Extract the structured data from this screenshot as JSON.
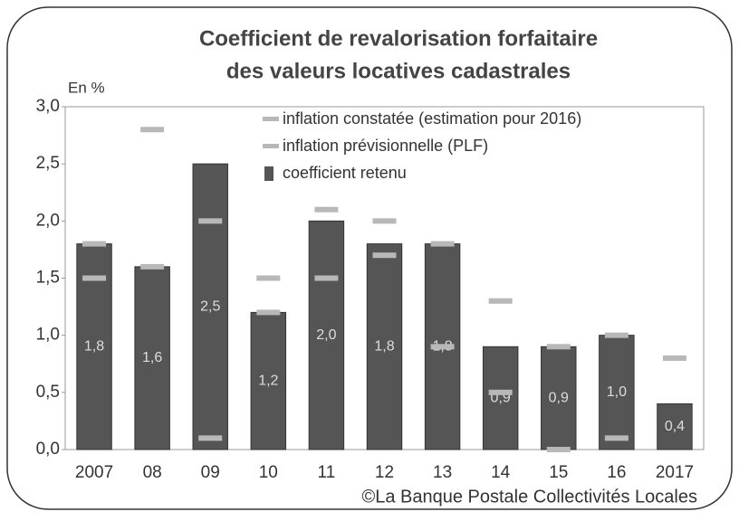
{
  "chart_data": {
    "type": "bar",
    "title": [
      "Coefficient de revalorisation forfaitaire",
      "des valeurs locatives cadastrales"
    ],
    "y_axis_label": "En %",
    "source": "©La Banque Postale Collectivités Locales",
    "categories": [
      "2007",
      "08",
      "09",
      "10",
      "11",
      "12",
      "13",
      "14",
      "15",
      "16",
      "2017"
    ],
    "series": [
      {
        "name": "inflation  constatée (estimation pour 2016)",
        "color": "#b8b8b8",
        "kind": "marker",
        "values": [
          1.5,
          2.8,
          0.1,
          1.5,
          2.1,
          2.0,
          0.9,
          0.5,
          0.0,
          0.1,
          null
        ]
      },
      {
        "name": "inflation prévisionnelle (PLF)",
        "color": "#b8b8b8",
        "kind": "marker",
        "values": [
          1.8,
          1.6,
          2.0,
          1.2,
          1.5,
          1.7,
          1.8,
          1.3,
          0.9,
          1.0,
          0.8
        ]
      },
      {
        "name": "coefficient retenu",
        "color": "#555555",
        "kind": "bar",
        "values": [
          1.8,
          1.6,
          2.5,
          1.2,
          2.0,
          1.8,
          1.8,
          0.9,
          0.9,
          1.0,
          0.4
        ],
        "value_labels": [
          "1,8",
          "1,6",
          "2,5",
          "1,2",
          "2,0",
          "1,8",
          "1,8",
          "0,9",
          "0,9",
          "1,0",
          "0,4"
        ]
      }
    ],
    "ylim": [
      0,
      3
    ],
    "yticks": [
      {
        "value": 0,
        "label": "0,0"
      },
      {
        "value": 0.5,
        "label": "0,5"
      },
      {
        "value": 1,
        "label": "1,0"
      },
      {
        "value": 1.5,
        "label": "1,5"
      },
      {
        "value": 2,
        "label": "2,0"
      },
      {
        "value": 2.5,
        "label": "2,5"
      },
      {
        "value": 3,
        "label": "3,0"
      }
    ],
    "grid": false
  }
}
